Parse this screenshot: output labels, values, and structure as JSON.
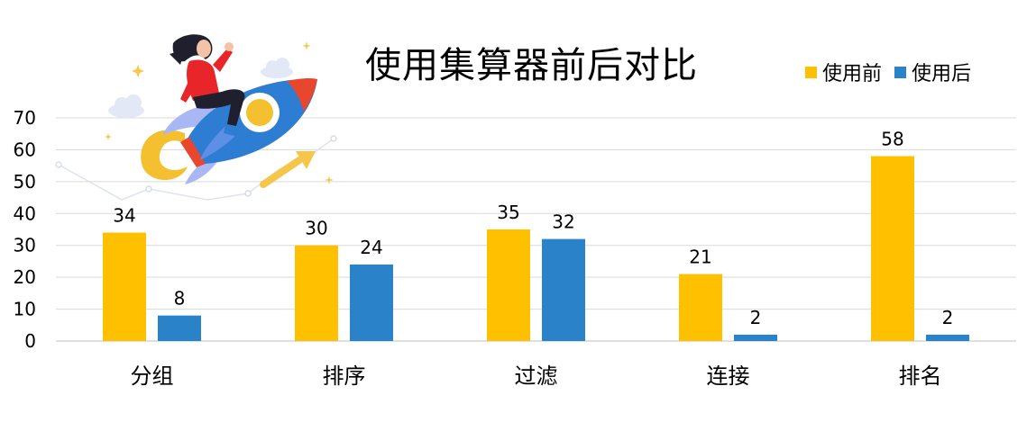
{
  "chart_data": {
    "type": "bar",
    "title": "使用集算器前后对比",
    "categories": [
      "分组",
      "排序",
      "过滤",
      "连接",
      "排名"
    ],
    "series": [
      {
        "name": "使用前",
        "values": [
          34,
          30,
          35,
          21,
          58
        ],
        "color": "#FFC000"
      },
      {
        "name": "使用后",
        "values": [
          8,
          24,
          32,
          2,
          2
        ],
        "color": "#2A83C8"
      }
    ],
    "ylim": [
      0,
      70
    ],
    "yticks": [
      0,
      10,
      20,
      30,
      40,
      50,
      60,
      70
    ],
    "grid": true,
    "legend": "top-right",
    "decoration": "rocket-illustration"
  }
}
